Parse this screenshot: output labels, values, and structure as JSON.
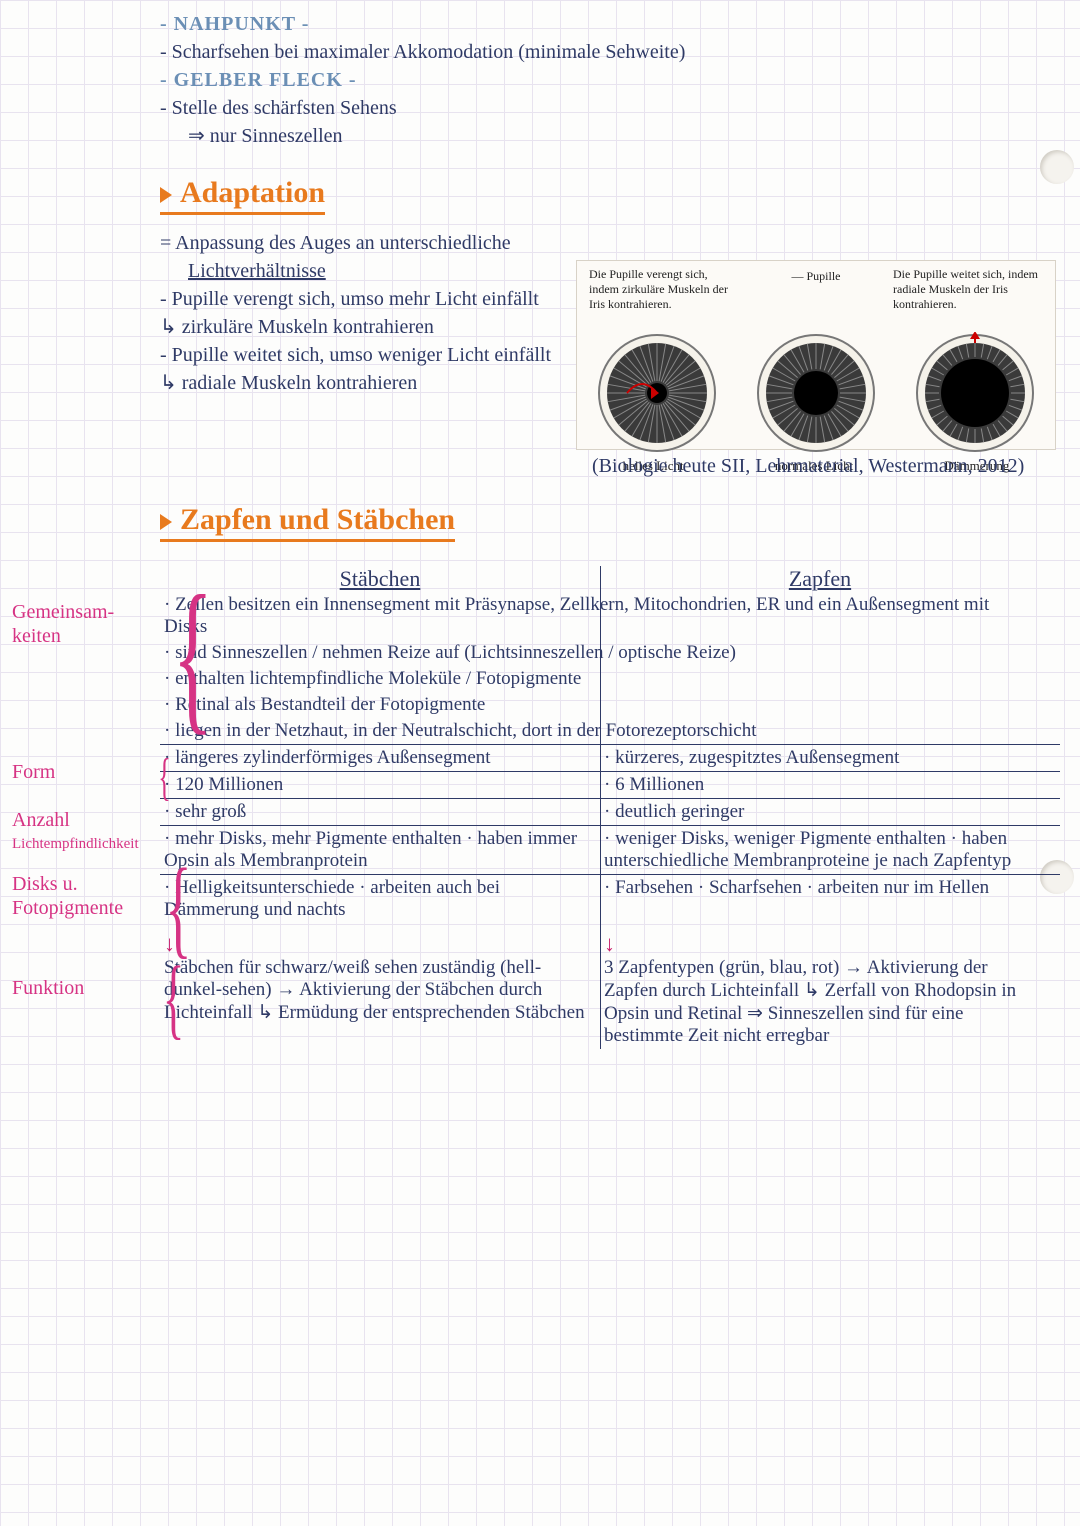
{
  "colors": {
    "ink_blue": "#2f3a66",
    "ink_black": "#1b1b1b",
    "ink_pink": "#d63384",
    "ink_lightblue": "#6b8fb5",
    "heading_orange": "#e87a1e",
    "grid": "#e8e3ef",
    "paper": "#fdfdfc",
    "diagram_bg": "#fcfaf6",
    "diagram_border": "#d8d2c7"
  },
  "top": {
    "term1": "- NAHPUNKT -",
    "line1": "- Scharfsehen bei maximaler Akkomodation (minimale Sehweite)",
    "term2": "- GELBER FLECK -",
    "line2": "- Stelle des schärfsten Sehens",
    "line3": "⇒ nur Sinneszellen"
  },
  "adaptation": {
    "heading": "Adaptation",
    "b1": "= Anpassung des Auges an unterschiedliche",
    "b1b": "Lichtverhältnisse",
    "b2": "- Pupille verengt sich, umso mehr Licht einfällt",
    "b2a": "↳ zirkuläre Muskeln kontrahieren",
    "b3": "- Pupille weitet sich, umso weniger Licht einfällt",
    "b3a": "↳ radiale Muskeln kontrahieren"
  },
  "diagram": {
    "left_caption": "Die Pupille verengt sich, indem zirkuläre Muskeln der Iris kontrahieren.",
    "mid_caption": "Pupille",
    "right_caption": "Die Pupille weitet sich, indem radiale Muskeln der Iris kontrahieren.",
    "labels": [
      "helles Licht",
      "normales Licht",
      "Dämmerung"
    ],
    "pupil_radii": [
      10,
      22,
      34
    ],
    "iris_radius": 50,
    "outer_radius": 58,
    "iris_fill": "#3a3a3a",
    "pupil_fill": "#000000",
    "ring_stroke": "#777777"
  },
  "citation": "(Biologie heute SII, Lehrmaterial, Westermann, 2012)",
  "section2_heading": "Zapfen und Stäbchen",
  "table": {
    "head_left": "Stäbchen",
    "head_right": "Zapfen",
    "gemeinsam": [
      "· Zellen besitzen ein Innensegment mit Präsynapse, Zellkern, Mitochondrien, ER und ein Außensegment mit Disks",
      "· sind Sinneszellen / nehmen Reize auf (Lichtsinneszellen / optische Reize)",
      "· enthalten lichtempfindliche Moleküle / Fotopigmente",
      "· Retinal als Bestandteil der Fotopigmente",
      "· liegen in der Netzhaut, in der Neutralschicht, dort in der Fotorezeptor­schicht"
    ],
    "form": {
      "l": "· längeres zylinderförmiges Außen­segment",
      "r": "· kürzeres, zugespitztes Außensegment"
    },
    "anzahl": {
      "l": "· 120 Millionen",
      "r": "· 6 Millionen"
    },
    "licht": {
      "l": "· sehr groß",
      "r": "· deutlich geringer"
    },
    "disks": {
      "l": "· mehr Disks, mehr Pigmente ent­halten\n· haben immer Opsin als Membran­protein",
      "r": "· weniger Disks, weniger Pigmente enthalten\n· haben unterschiedliche Membranpro­teine je nach Zapfentyp"
    },
    "funktion": {
      "l": "· Helligkeitsunterschiede\n· arbeiten auch bei Dämmerung und nachts",
      "r": "· Farbsehen\n· Scharfsehen\n· arbeiten nur im Hellen"
    }
  },
  "categories": {
    "c1": "Gemeinsam-\nkeiten",
    "c2": "Form",
    "c3": "Anzahl",
    "c4": "Lichtempfindlichkeit",
    "c5": "Disks u.\nFotopigmente",
    "c6": "Funktion"
  },
  "below": {
    "left": "Stäbchen für schwarz/weiß sehen zuständig (hell-dunkel-sehen)\n→ Aktivierung der Stäbchen durch Lichteinfall\n↳ Ermüdung der entsprechenden Stäb­chen",
    "right": "3 Zapfentypen (grün, blau, rot)\n→ Aktivierung der Zapfen durch Lichteinfall\n↳ Zerfall von Rhodopsin in Opsin und Retinal\n⇒ Sinneszellen sind für eine bestimmte Zeit nicht erregbar"
  }
}
